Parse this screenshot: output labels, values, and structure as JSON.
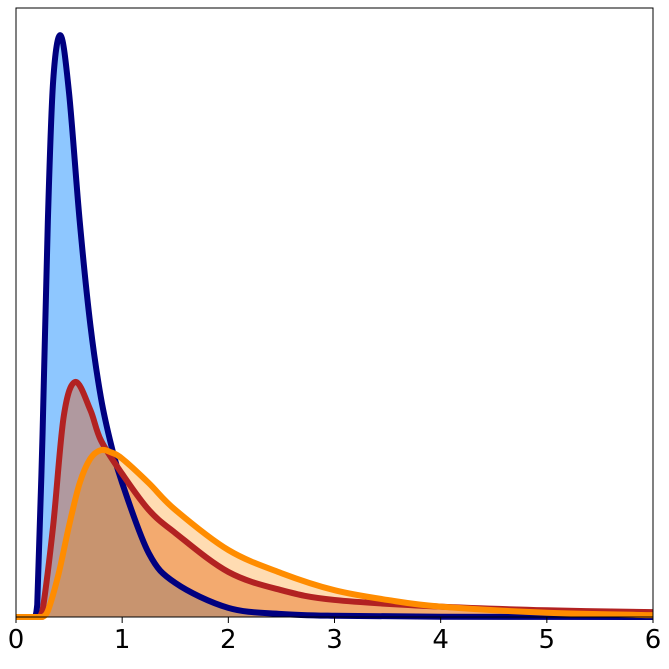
{
  "chart_data": {
    "type": "area",
    "title": "",
    "xlabel": "",
    "ylabel": "",
    "xlim": [
      0,
      6
    ],
    "ylim": [
      0,
      1
    ],
    "y_ticks_shown": false,
    "grid": false,
    "legend": "none",
    "x_ticks": [
      "0",
      "1",
      "2",
      "3",
      "4",
      "5",
      "6"
    ],
    "series": [
      {
        "line_color": "#000080",
        "fill_color": "#1e90ff",
        "fill_opacity": 0.5,
        "x": [
          0.18,
          0.2,
          0.25,
          0.3,
          0.35,
          0.42,
          0.5,
          0.6,
          0.7,
          0.8,
          0.9,
          1.0,
          1.25,
          1.5,
          2.0,
          2.5,
          3.0,
          4.0,
          6.0
        ],
        "y": [
          0,
          0.02,
          0.3,
          0.65,
          0.88,
          0.955,
          0.86,
          0.65,
          0.48,
          0.36,
          0.28,
          0.22,
          0.105,
          0.056,
          0.015,
          0.005,
          0.002,
          0.0005,
          0
        ]
      },
      {
        "line_color": "#b22222",
        "fill_color": "#d9622b",
        "fill_opacity": 0.45,
        "x": [
          0.22,
          0.25,
          0.35,
          0.45,
          0.56,
          0.7,
          0.8,
          1.0,
          1.25,
          1.5,
          2.0,
          2.5,
          3.0,
          4.0,
          5.0,
          6.0
        ],
        "y": [
          0,
          0.01,
          0.15,
          0.33,
          0.386,
          0.34,
          0.29,
          0.235,
          0.176,
          0.138,
          0.074,
          0.044,
          0.028,
          0.017,
          0.011,
          0.008
        ]
      },
      {
        "line_color": "#ff8c00",
        "fill_color": "#ff8c00",
        "fill_opacity": 0.3,
        "x": [
          0.25,
          0.3,
          0.4,
          0.5,
          0.6,
          0.7,
          0.8,
          0.9,
          1.0,
          1.25,
          1.5,
          2.0,
          2.5,
          3.0,
          3.5,
          4.0,
          5.0,
          6.0
        ],
        "y": [
          0,
          0.01,
          0.07,
          0.15,
          0.22,
          0.26,
          0.274,
          0.27,
          0.26,
          0.22,
          0.176,
          0.11,
          0.072,
          0.044,
          0.028,
          0.017,
          0.007,
          0.003
        ]
      }
    ]
  }
}
